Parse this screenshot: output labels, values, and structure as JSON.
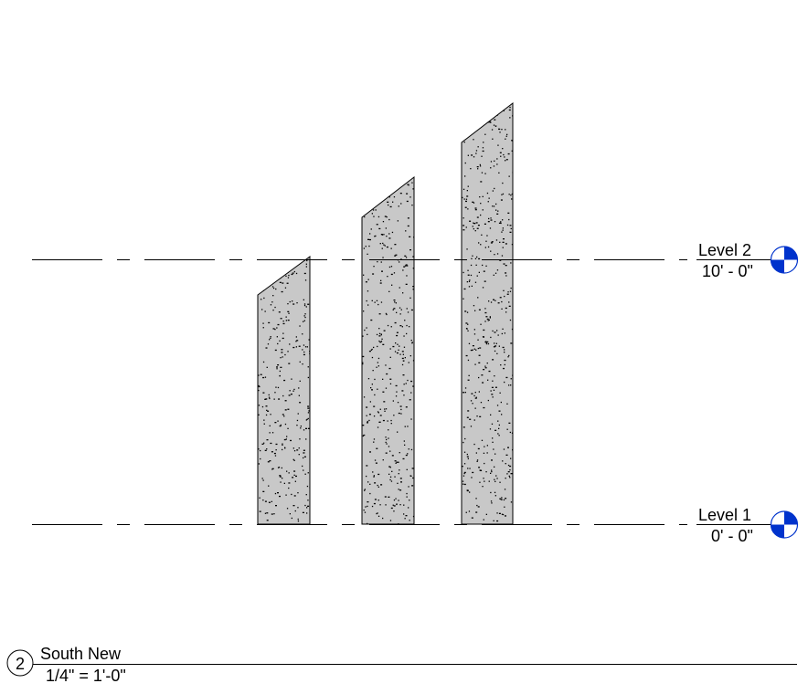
{
  "view": {
    "number": "2",
    "title": "South New",
    "scale": "1/4\" = 1'-0\""
  },
  "levels": [
    {
      "name": "Level 2",
      "elevation": "10' - 0\""
    },
    {
      "name": "Level 1",
      "elevation": "0' - 0\""
    }
  ],
  "colors": {
    "wall_fill": "#c8c8c8",
    "level_marker": "#0033cc"
  },
  "walls_count_visible": 3,
  "icons": {
    "level_head": "level-target-icon",
    "view_tag": "view-number-circle"
  }
}
